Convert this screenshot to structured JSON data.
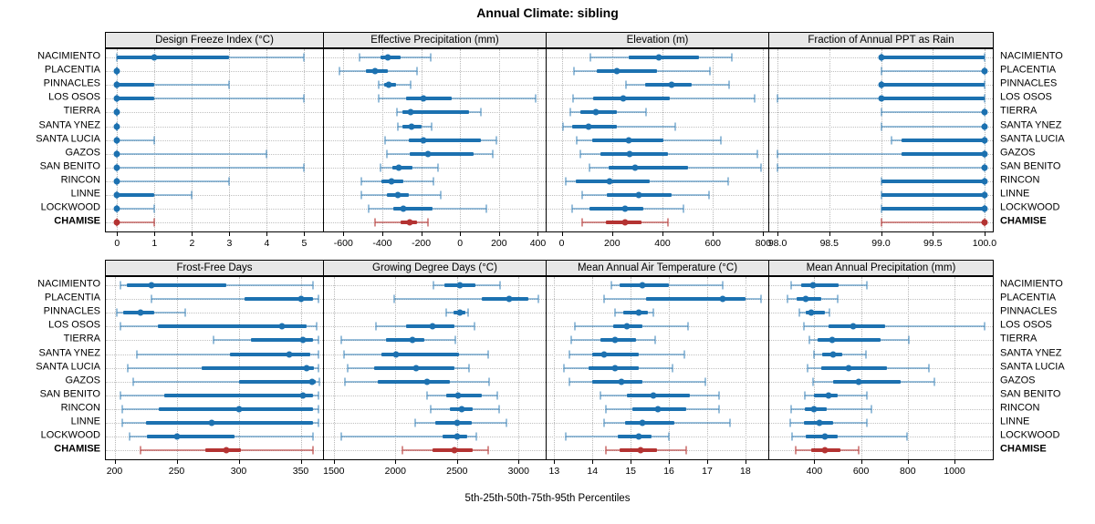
{
  "chart_data": {
    "type": "dotplot-percentiles",
    "title": "Annual Climate: sibling",
    "caption": "5th-25th-50th-75th-95th Percentiles",
    "legend_position": "none",
    "grid": true,
    "stations": [
      "NACIMIENTO",
      "PLACENTIA",
      "PINNACLES",
      "LOS OSOS",
      "TIERRA",
      "SANTA YNEZ",
      "SANTA LUCIA",
      "GAZOS",
      "SAN BENITO",
      "RINCON",
      "LINNE",
      "LOCKWOOD",
      "CHAMISE"
    ],
    "highlight_station": "CHAMISE",
    "percentiles": [
      5,
      25,
      50,
      75,
      95
    ],
    "colors": {
      "series": "#1c71b0",
      "series_light": "rgba(28,113,176,0.45)",
      "highlight": "#b43332",
      "highlight_light": "rgba(180,51,50,0.55)",
      "strip_bg": "#e7e7e7",
      "grid": "#b8b8b8",
      "border": "#000000"
    },
    "panels": [
      {
        "title": "Design Freeze Index (°C)",
        "xlim": [
          -0.3,
          5.5
        ],
        "ticks": [
          0,
          1,
          2,
          3,
          4,
          5
        ],
        "tick_labels": [
          "0",
          "1",
          "2",
          "3",
          "4",
          "5"
        ],
        "values": {
          "NACIMIENTO": [
            0,
            0,
            1,
            3,
            5
          ],
          "PLACENTIA": [
            0,
            0,
            0,
            0,
            0
          ],
          "PINNACLES": [
            0,
            0,
            0,
            1,
            3
          ],
          "LOS OSOS": [
            0,
            0,
            0,
            1,
            5
          ],
          "TIERRA": [
            0,
            0,
            0,
            0,
            0
          ],
          "SANTA YNEZ": [
            0,
            0,
            0,
            0,
            0
          ],
          "SANTA LUCIA": [
            0,
            0,
            0,
            0,
            1
          ],
          "GAZOS": [
            0,
            0,
            0,
            0,
            4
          ],
          "SAN BENITO": [
            0,
            0,
            0,
            0,
            5
          ],
          "RINCON": [
            0,
            0,
            0,
            0,
            3
          ],
          "LINNE": [
            0,
            0,
            0,
            1,
            2
          ],
          "LOCKWOOD": [
            0,
            0,
            0,
            0,
            1
          ],
          "CHAMISE": [
            0,
            0,
            0,
            0,
            1
          ]
        }
      },
      {
        "title": "Effective Precipitation (mm)",
        "xlim": [
          -700,
          440
        ],
        "ticks": [
          -600,
          -400,
          -200,
          0,
          200,
          400
        ],
        "tick_labels": [
          "-600",
          "-400",
          "-200",
          "0",
          "200",
          "400"
        ],
        "values": {
          "NACIMIENTO": [
            -515,
            -410,
            -370,
            -305,
            -150
          ],
          "PLACENTIA": [
            -620,
            -485,
            -435,
            -370,
            -220
          ],
          "PINNACLES": [
            -420,
            -390,
            -365,
            -330,
            -255
          ],
          "LOS OSOS": [
            -420,
            -280,
            -190,
            -45,
            390
          ],
          "TIERRA": [
            -325,
            -295,
            -255,
            45,
            105
          ],
          "SANTA YNEZ": [
            -320,
            -295,
            -250,
            -200,
            -145
          ],
          "SANTA LUCIA": [
            -385,
            -265,
            -190,
            105,
            185
          ],
          "GAZOS": [
            -375,
            -260,
            -165,
            70,
            170
          ],
          "SAN BENITO": [
            -410,
            -350,
            -315,
            -245,
            -115
          ],
          "RINCON": [
            -510,
            -405,
            -355,
            -290,
            -135
          ],
          "LINNE": [
            -510,
            -375,
            -320,
            -265,
            -100
          ],
          "LOCKWOOD": [
            -470,
            -345,
            -290,
            -140,
            135
          ],
          "CHAMISE": [
            -435,
            -305,
            -260,
            -220,
            -165
          ]
        }
      },
      {
        "title": "Elevation (m)",
        "xlim": [
          -60,
          820
        ],
        "ticks": [
          0,
          200,
          400,
          600,
          800
        ],
        "tick_labels": [
          "0",
          "200",
          "400",
          "600",
          "800"
        ],
        "values": {
          "NACIMIENTO": [
            115,
            265,
            385,
            545,
            675
          ],
          "PLACENTIA": [
            50,
            140,
            220,
            380,
            590
          ],
          "PINNACLES": [
            255,
            330,
            435,
            515,
            665
          ],
          "LOS OSOS": [
            45,
            125,
            245,
            430,
            765
          ],
          "TIERRA": [
            35,
            75,
            135,
            220,
            335
          ],
          "SANTA YNEZ": [
            5,
            40,
            105,
            220,
            450
          ],
          "SANTA LUCIA": [
            60,
            120,
            265,
            405,
            630
          ],
          "GAZOS": [
            75,
            155,
            270,
            420,
            775
          ],
          "SAN BENITO": [
            110,
            185,
            290,
            500,
            790
          ],
          "RINCON": [
            15,
            55,
            190,
            350,
            660
          ],
          "LINNE": [
            80,
            180,
            305,
            435,
            585
          ],
          "LOCKWOOD": [
            40,
            110,
            250,
            325,
            485
          ],
          "CHAMISE": [
            80,
            175,
            250,
            315,
            420
          ]
        }
      },
      {
        "title": "Fraction of Annual PPT as Rain",
        "xlim": [
          97.92,
          100.08
        ],
        "ticks": [
          98.0,
          98.5,
          99.0,
          99.5,
          100.0
        ],
        "tick_labels": [
          "98.0",
          "98.5",
          "99.0",
          "99.5",
          "100.0"
        ],
        "values": {
          "NACIMIENTO": [
            99,
            99,
            99,
            100,
            100
          ],
          "PLACENTIA": [
            99,
            100,
            100,
            100,
            100
          ],
          "PINNACLES": [
            99,
            99,
            99,
            100,
            100
          ],
          "LOS OSOS": [
            98,
            99,
            99,
            100,
            100
          ],
          "TIERRA": [
            99,
            100,
            100,
            100,
            100
          ],
          "SANTA YNEZ": [
            99,
            100,
            100,
            100,
            100
          ],
          "SANTA LUCIA": [
            99.1,
            99.2,
            100,
            100,
            100
          ],
          "GAZOS": [
            98,
            99.2,
            100,
            100,
            100
          ],
          "SAN BENITO": [
            98,
            100,
            100,
            100,
            100
          ],
          "RINCON": [
            99,
            99,
            100,
            100,
            100
          ],
          "LINNE": [
            99,
            99,
            100,
            100,
            100
          ],
          "LOCKWOOD": [
            99,
            99,
            100,
            100,
            100
          ],
          "CHAMISE": [
            99,
            100,
            100,
            100,
            100
          ]
        }
      },
      {
        "title": "Frost-Free Days",
        "xlim": [
          193,
          368
        ],
        "ticks": [
          200,
          250,
          300,
          350
        ],
        "tick_labels": [
          "200",
          "250",
          "300",
          "350"
        ],
        "values": {
          "NACIMIENTO": [
            205,
            210,
            230,
            290,
            360
          ],
          "PLACENTIA": [
            230,
            305,
            350,
            360,
            364
          ],
          "PINNACLES": [
            202,
            207,
            221,
            232,
            257
          ],
          "LOS OSOS": [
            205,
            235,
            335,
            355,
            363
          ],
          "TIERRA": [
            280,
            310,
            352,
            360,
            364
          ],
          "SANTA YNEZ": [
            218,
            293,
            341,
            358,
            364
          ],
          "SANTA LUCIA": [
            211,
            270,
            355,
            361,
            364
          ],
          "GAZOS": [
            215,
            300,
            359,
            362,
            365
          ],
          "SAN BENITO": [
            205,
            240,
            352,
            360,
            364
          ],
          "RINCON": [
            206,
            236,
            300,
            360,
            364
          ],
          "LINNE": [
            206,
            225,
            278,
            360,
            364
          ],
          "LOCKWOOD": [
            212,
            226,
            250,
            297,
            360
          ],
          "CHAMISE": [
            221,
            273,
            290,
            302,
            360
          ]
        }
      },
      {
        "title": "Growing Degree Days (°C)",
        "xlim": [
          1420,
          3220
        ],
        "ticks": [
          1500,
          2000,
          2500,
          3000
        ],
        "tick_labels": [
          "1500",
          "2000",
          "2500",
          "3000"
        ],
        "values": {
          "NACIMIENTO": [
            2310,
            2400,
            2520,
            2650,
            2850
          ],
          "PLACENTIA": [
            1990,
            2700,
            2920,
            3080,
            3160
          ],
          "PINNACLES": [
            2415,
            2470,
            2520,
            2570,
            2590
          ],
          "LOS OSOS": [
            1840,
            2090,
            2300,
            2480,
            2640
          ],
          "TIERRA": [
            1560,
            1925,
            2140,
            2235,
            2490
          ],
          "SANTA YNEZ": [
            1580,
            1890,
            2005,
            2520,
            2755
          ],
          "SANTA LUCIA": [
            1610,
            1830,
            2170,
            2480,
            2600
          ],
          "GAZOS": [
            1590,
            1860,
            2260,
            2440,
            2760
          ],
          "SAN BENITO": [
            2260,
            2410,
            2510,
            2700,
            2830
          ],
          "RINCON": [
            2290,
            2440,
            2540,
            2630,
            2845
          ],
          "LINNE": [
            2160,
            2320,
            2500,
            2620,
            2900
          ],
          "LOCKWOOD": [
            1560,
            2385,
            2505,
            2585,
            2660
          ],
          "CHAMISE": [
            2060,
            2300,
            2480,
            2630,
            2755
          ]
        }
      },
      {
        "title": "Mean Annual Air Temperature (°C)",
        "xlim": [
          12.8,
          18.6
        ],
        "ticks": [
          13,
          14,
          15,
          16,
          17,
          18
        ],
        "tick_labels": [
          "13",
          "14",
          "15",
          "16",
          "17",
          "18"
        ],
        "values": {
          "NACIMIENTO": [
            14.5,
            14.7,
            15.3,
            16.0,
            17.4
          ],
          "PLACENTIA": [
            14.3,
            15.4,
            17.4,
            18.0,
            18.4
          ],
          "PINNACLES": [
            14.6,
            14.8,
            15.2,
            15.45,
            15.6
          ],
          "LOS OSOS": [
            13.55,
            14.55,
            14.9,
            15.3,
            16.5
          ],
          "TIERRA": [
            13.45,
            14.2,
            14.6,
            15.15,
            15.65
          ],
          "SANTA YNEZ": [
            13.4,
            14.0,
            14.3,
            15.2,
            16.4
          ],
          "SANTA LUCIA": [
            13.25,
            13.9,
            14.6,
            15.2,
            16.1
          ],
          "GAZOS": [
            13.4,
            14.0,
            14.75,
            15.3,
            16.95
          ],
          "SAN BENITO": [
            14.2,
            14.9,
            15.6,
            16.55,
            17.3
          ],
          "RINCON": [
            14.35,
            15.05,
            15.7,
            16.45,
            17.3
          ],
          "LINNE": [
            14.3,
            14.85,
            15.3,
            16.15,
            17.6
          ],
          "LOCKWOOD": [
            13.3,
            14.65,
            15.2,
            15.55,
            16.0
          ],
          "CHAMISE": [
            14.35,
            14.7,
            15.25,
            15.7,
            16.45
          ]
        }
      },
      {
        "title": "Mean Annual Precipitation (mm)",
        "xlim": [
          207,
          1164
        ],
        "ticks": [
          400,
          600,
          800,
          1000
        ],
        "tick_labels": [
          "400",
          "600",
          "800",
          "1000"
        ],
        "values": {
          "NACIMIENTO": [
            300,
            345,
            395,
            505,
            625
          ],
          "PLACENTIA": [
            285,
            325,
            365,
            430,
            500
          ],
          "PINNACLES": [
            335,
            365,
            385,
            445,
            465
          ],
          "LOS OSOS": [
            355,
            460,
            565,
            705,
            1130
          ],
          "TIERRA": [
            380,
            415,
            475,
            685,
            805
          ],
          "SANTA YNEZ": [
            400,
            435,
            480,
            520,
            620
          ],
          "SANTA LUCIA": [
            370,
            430,
            545,
            710,
            890
          ],
          "GAZOS": [
            395,
            480,
            590,
            770,
            915
          ],
          "SAN BENITO": [
            360,
            400,
            460,
            500,
            625
          ],
          "RINCON": [
            300,
            360,
            400,
            455,
            645
          ],
          "LINNE": [
            295,
            355,
            420,
            480,
            625
          ],
          "LOCKWOOD": [
            305,
            365,
            445,
            500,
            795
          ],
          "CHAMISE": [
            320,
            385,
            445,
            510,
            590
          ]
        }
      }
    ]
  }
}
